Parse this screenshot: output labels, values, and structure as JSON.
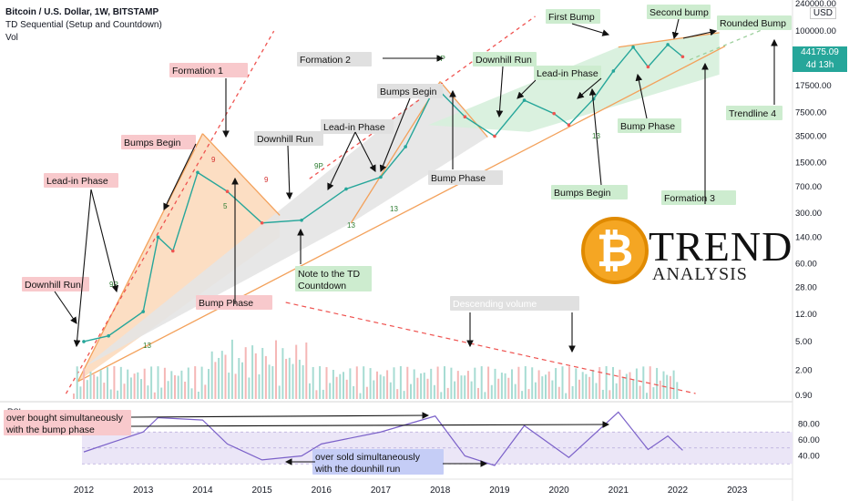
{
  "header": {
    "title": "Bitcoin / U.S. Dollar, 1W, BITSTAMP",
    "indicator": "TD Sequential (Setup and Countdown)",
    "vol": "Vol"
  },
  "price_axis": {
    "currency": "USD",
    "last_price": "44175.09",
    "countdown": "4d 13h",
    "ticks": [
      "240000.00",
      "100000.00",
      "44175.09",
      "17500.00",
      "7500.00",
      "3500.00",
      "1500.00",
      "700.00",
      "300.00",
      "140.00",
      "60.00",
      "28.00",
      "12.00",
      "5.00",
      "2.00",
      "0.90"
    ],
    "rsi_ticks": [
      "80.00",
      "60.00",
      "40.00"
    ]
  },
  "logo": {
    "word": "TREND",
    "sub": "ANALYSIS",
    "coin_glyph": "₿"
  },
  "colors": {
    "up": "#26a69a",
    "down": "#ef5350",
    "formation_fill": "#fbd8b8",
    "gray_fill": "#e4e4e4",
    "green_fill": "#d6f0dc",
    "trend_line": "#f3a15b",
    "dashed_red": "#ef5350",
    "label_red_bg": "#f8c9cc",
    "label_green_bg": "#cdeccf",
    "label_gray_bg": "#e0e0e0",
    "label_blue_bg": "#c5cdf6",
    "rsi_line": "#7b61c9",
    "rsi_ma": "#e8c93b",
    "rsi_band": "#ebe6f7"
  },
  "chart_data": {
    "type": "line",
    "title": "Bitcoin / U.S. Dollar, 1W, BITSTAMP",
    "scale": "log",
    "x": [
      "2012",
      "2013",
      "2014",
      "2015",
      "2016",
      "2017",
      "2018",
      "2019",
      "2020",
      "2021",
      "2022",
      "2023"
    ],
    "ylim": [
      0.9,
      240000
    ],
    "series": [
      {
        "name": "BTCUSD weekly close (approx.)",
        "points": [
          [
            "2012",
            5
          ],
          [
            "2012-06",
            6
          ],
          [
            "2013",
            13
          ],
          [
            "2013-04",
            140
          ],
          [
            "2013-07",
            90
          ],
          [
            "2013-12",
            1100
          ],
          [
            "2014-06",
            600
          ],
          [
            "2015-01",
            220
          ],
          [
            "2015-09",
            240
          ],
          [
            "2016-06",
            650
          ],
          [
            "2017-01",
            950
          ],
          [
            "2017-06",
            2500
          ],
          [
            "2017-12",
            17000
          ],
          [
            "2018-06",
            6500
          ],
          [
            "2018-12",
            3500
          ],
          [
            "2019-06",
            11000
          ],
          [
            "2019-12",
            7200
          ],
          [
            "2020-03",
            5000
          ],
          [
            "2020-08",
            11500
          ],
          [
            "2020-12",
            28000
          ],
          [
            "2021-04",
            60000
          ],
          [
            "2021-07",
            32000
          ],
          [
            "2021-11",
            65000
          ],
          [
            "2022-02",
            44175.09
          ]
        ]
      },
      {
        "name": "RSI (approx.)",
        "points": [
          [
            "2012",
            45
          ],
          [
            "2013",
            70
          ],
          [
            "2013-04",
            88
          ],
          [
            "2014",
            85
          ],
          [
            "2014-06",
            55
          ],
          [
            "2015",
            35
          ],
          [
            "2015-09",
            40
          ],
          [
            "2016",
            55
          ],
          [
            "2017",
            70
          ],
          [
            "2017-12",
            90
          ],
          [
            "2018-06",
            40
          ],
          [
            "2018-12",
            28
          ],
          [
            "2019-06",
            78
          ],
          [
            "2020-03",
            38
          ],
          [
            "2021-01",
            95
          ],
          [
            "2021-07",
            48
          ],
          [
            "2021-11",
            65
          ],
          [
            "2022-02",
            47
          ]
        ]
      }
    ],
    "annotations": [
      {
        "text": "Formation 1",
        "style": "red"
      },
      {
        "text": "Formation 2",
        "style": "gray"
      },
      {
        "text": "Formation 3",
        "style": "green"
      },
      {
        "text": "Bumps Begin",
        "style": "red"
      },
      {
        "text": "Lead-in Phase",
        "style": "red"
      },
      {
        "text": "Downhill Run",
        "style": "red"
      },
      {
        "text": "Bump Phase",
        "style": "red"
      },
      {
        "text": "Downhill Run",
        "style": "gray"
      },
      {
        "text": "Lead-in Phase",
        "style": "gray"
      },
      {
        "text": "Bumps Begin",
        "style": "gray"
      },
      {
        "text": "Bump Phase",
        "style": "gray"
      },
      {
        "text": "Note to the TD\nCountdown",
        "style": "green"
      },
      {
        "text": "Downhill Run",
        "style": "green"
      },
      {
        "text": "Lead-in Phase",
        "style": "green"
      },
      {
        "text": "First Bump",
        "style": "green"
      },
      {
        "text": "Second bump",
        "style": "green"
      },
      {
        "text": "Rounded Bump",
        "style": "green"
      },
      {
        "text": "Bump Phase",
        "style": "green"
      },
      {
        "text": "Bumps Begin",
        "style": "green"
      },
      {
        "text": "Trendline 4",
        "style": "green"
      },
      {
        "text": "Descending volume",
        "style": "gray"
      },
      {
        "text": "over bought simultaneously\nwith the bump phase",
        "style": "red"
      },
      {
        "text": "over sold simultaneously\nwith the dounhill run",
        "style": "blue"
      }
    ],
    "td_labels": [
      "9P",
      "9",
      "13",
      "5",
      "9P",
      "13",
      "9P",
      "13",
      "9",
      "13"
    ],
    "rsi_label": "RSI"
  }
}
